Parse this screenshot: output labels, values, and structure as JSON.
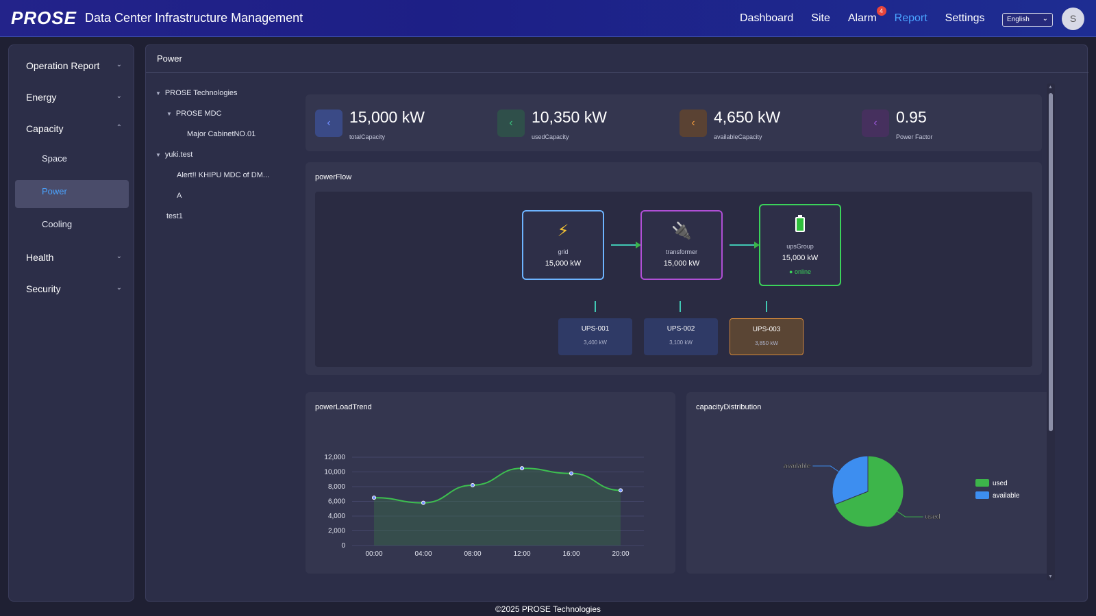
{
  "header": {
    "logo": "PROSE",
    "title": "Data Center Infrastructure Management",
    "nav": [
      {
        "label": "Dashboard"
      },
      {
        "label": "Site"
      },
      {
        "label": "Alarm",
        "badge": "4"
      },
      {
        "label": "Report",
        "active": true
      },
      {
        "label": "Settings"
      }
    ],
    "language": "English",
    "avatar": "S"
  },
  "sidebar": {
    "items": [
      {
        "label": "Operation Report"
      },
      {
        "label": "Energy"
      },
      {
        "label": "Capacity"
      },
      {
        "label": "Health"
      },
      {
        "label": "Security"
      }
    ],
    "capacity_sub": [
      "Space",
      "Power",
      "Cooling"
    ],
    "active_sub": "Power"
  },
  "main": {
    "title": "Power",
    "tree": [
      "PROSE Technologies",
      "PROSE MDC",
      "Major CabinetNO.01",
      "yuki.test",
      "Alert!! KHIPU MDC of DM...",
      "A",
      "test1"
    ],
    "stats": [
      {
        "value": "15,000 kW",
        "label": "totalCapacity",
        "color": "#3a4a86",
        "icon_color": "#6f8dff"
      },
      {
        "value": "10,350 kW",
        "label": "usedCapacity",
        "color": "#2f4f4a",
        "icon_color": "#39c07c"
      },
      {
        "value": "4,650 kW",
        "label": "availableCapacity",
        "color": "#5a4233",
        "icon_color": "#f09a3e"
      },
      {
        "value": "0.95",
        "label": "Power Factor",
        "color": "#46305e",
        "icon_color": "#9b57d9"
      }
    ],
    "power_flow": {
      "title": "powerFlow",
      "grid": {
        "name": "grid",
        "value": "15,000 kW"
      },
      "transformer": {
        "name": "transformer",
        "value": "15,000 kW"
      },
      "ups_group": {
        "name": "upsGroup",
        "value": "15,000 kW",
        "status": "online"
      },
      "ups_units": [
        {
          "name": "UPS-001",
          "value": "3,400 kW"
        },
        {
          "name": "UPS-002",
          "value": "3,100 kW"
        },
        {
          "name": "UPS-003",
          "value": "3,850 kW"
        }
      ]
    },
    "load_trend_title": "powerLoadTrend",
    "capacity_dist_title": "capacityDistribution"
  },
  "chart_data": [
    {
      "type": "area",
      "title": "powerLoadTrend",
      "x": [
        "00:00",
        "04:00",
        "08:00",
        "12:00",
        "16:00",
        "20:00"
      ],
      "y_ticks": [
        "12,000",
        "10,000",
        "8,000",
        "6,000",
        "4,000",
        "2,000",
        "0"
      ],
      "values": [
        6500,
        5800,
        8200,
        10500,
        9800,
        7500
      ],
      "ylim": [
        0,
        12000
      ],
      "grid": true
    },
    {
      "type": "pie",
      "title": "capacityDistribution",
      "labels": [
        "used",
        "available"
      ],
      "values": [
        10350,
        4650
      ],
      "colors": [
        "#3db54a",
        "#3d8ef0"
      ],
      "legend": "right"
    }
  ],
  "footer": "©2025 PROSE Technologies"
}
